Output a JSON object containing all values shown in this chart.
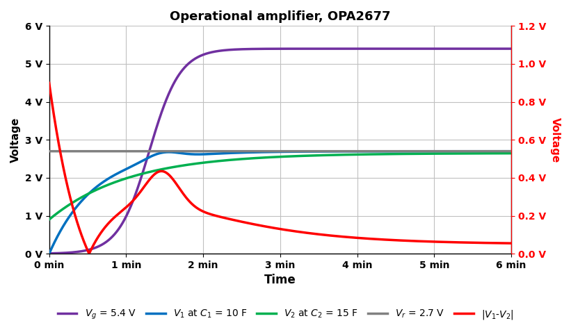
{
  "title": "Operational amplifier, OPA2677",
  "xlabel": "Time",
  "ylabel_left": "Voltage",
  "ylabel_right": "Voltage",
  "ylim_left": [
    0,
    6
  ],
  "ylim_right": [
    0,
    1.2
  ],
  "xticks_minutes": [
    0,
    1,
    2,
    3,
    4,
    5,
    6
  ],
  "yticks_left": [
    0,
    1,
    2,
    3,
    4,
    5,
    6
  ],
  "yticks_left_labels": [
    "0 V",
    "1 V",
    "2 V",
    "3 V",
    "4 V",
    "5 V",
    "6 V"
  ],
  "yticks_right": [
    0.0,
    0.2,
    0.4,
    0.6,
    0.8,
    1.0,
    1.2
  ],
  "yticks_right_labels": [
    "0.0 V",
    "0.2 V",
    "0.4 V",
    "0.6 V",
    "0.8 V",
    "1.0 V",
    "1.2 V"
  ],
  "Vg_value": 5.4,
  "Vr_value": 2.7,
  "colors": {
    "Vg": "#7030a0",
    "V1": "#0070c0",
    "V2": "#00b050",
    "Vr": "#808080",
    "Vdiff": "#ff0000"
  },
  "background_color": "#ffffff",
  "grid_color": "#c0c0c0",
  "title_fontsize": 13,
  "axis_label_fontsize": 11,
  "tick_fontsize": 10,
  "legend_fontsize": 10,
  "linewidth": 2.5
}
